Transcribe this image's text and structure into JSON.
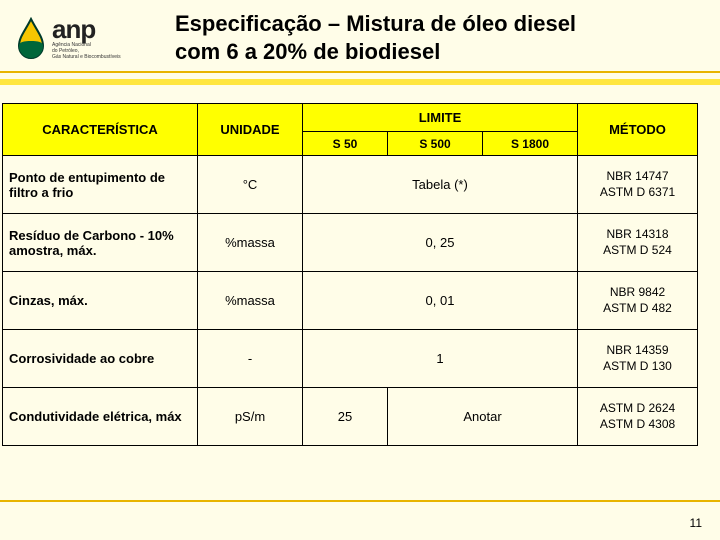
{
  "logo": {
    "anp": "anp",
    "sub1": "Agência Nacional",
    "sub2": "do Petróleo,",
    "sub3": "Gás Natural e Biocombustíveis",
    "drop_stroke": "#003a2a",
    "drop_top": "#f7c600",
    "drop_bottom": "#00663a"
  },
  "title_line1": "Especificação – Mistura de óleo diesel",
  "title_line2": "com 6 a 20% de biodiesel",
  "colors": {
    "page_bg": "#fffde8",
    "header_yellow": "#ffff00",
    "rule": "#e8b400",
    "band": "#ffe640"
  },
  "headers": {
    "caracteristica": "CARACTERÍSTICA",
    "unidade": "UNIDADE",
    "limite": "LIMITE",
    "metodo": "MÉTODO",
    "s50": "S 50",
    "s500": "S 500",
    "s1800": "S 1800"
  },
  "rows": [
    {
      "label": "Ponto de entupimento de filtro a frio",
      "unit": "°C",
      "limit_span": "Tabela (*)",
      "method": "NBR 14747\nASTM D 6371"
    },
    {
      "label": "Resíduo de Carbono - 10% amostra, máx.",
      "unit": "%massa",
      "limit_span": "0, 25",
      "method": "NBR 14318\nASTM D 524"
    },
    {
      "label": "Cinzas, máx.",
      "unit": "%massa",
      "limit_span": "0, 01",
      "method": "NBR 9842\nASTM D 482"
    },
    {
      "label": "Corrosividade ao cobre",
      "unit": "-",
      "limit_span": "1",
      "method": "NBR 14359\nASTM D 130"
    },
    {
      "label": "Condutividade elétrica, máx",
      "unit": "pS/m",
      "s50": "25",
      "s500_1800": "Anotar",
      "method": "ASTM D 2624\nASTM D 4308"
    }
  ],
  "page_number": "11"
}
